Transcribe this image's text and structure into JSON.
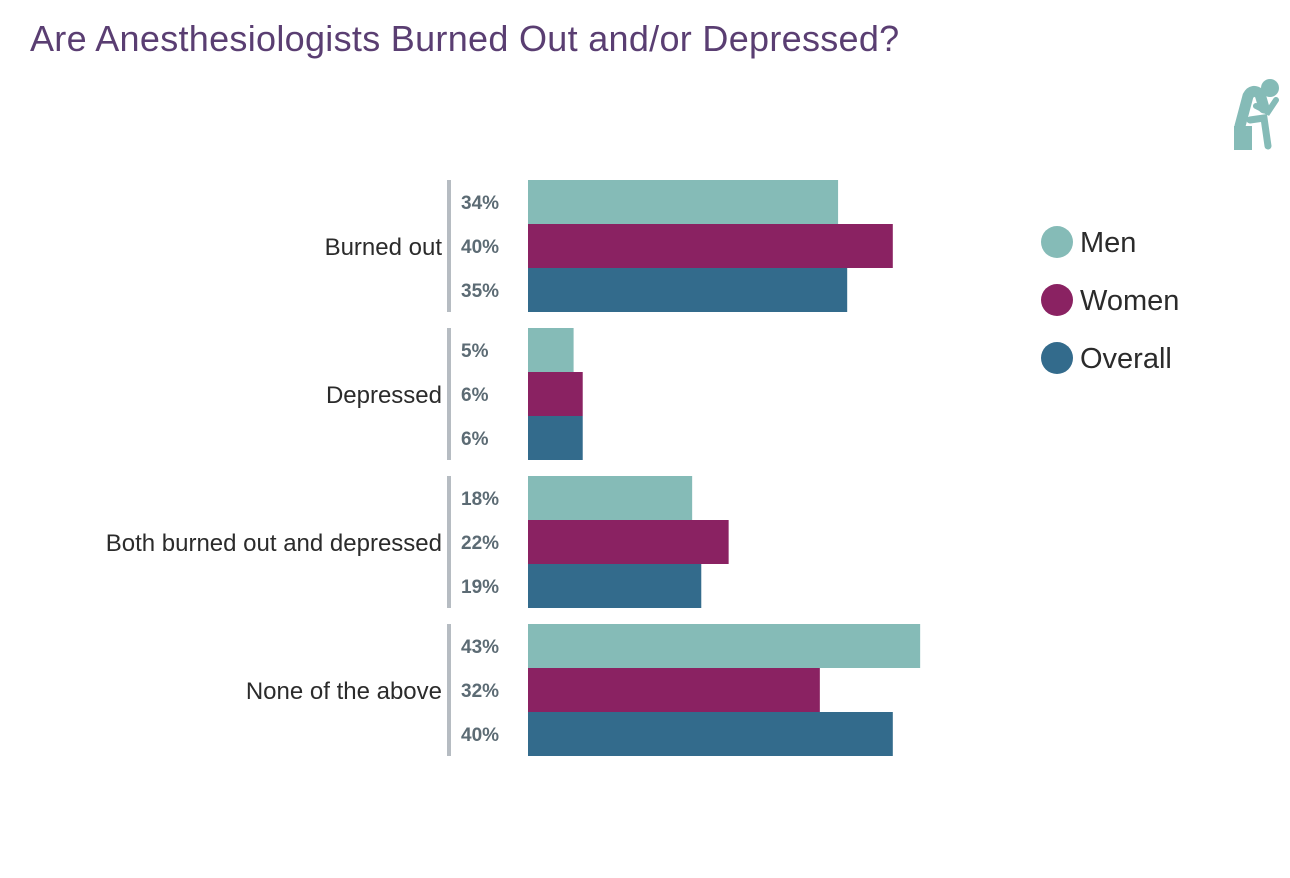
{
  "chart_data": {
    "type": "bar",
    "orientation": "horizontal",
    "title": "Are Anesthesiologists Burned Out and/or Depressed?",
    "categories": [
      "Burned out",
      "Depressed",
      "Both burned out and depressed",
      "None of the above"
    ],
    "series": [
      {
        "name": "Men",
        "color": "#85bbb7",
        "values": [
          34,
          5,
          18,
          43
        ]
      },
      {
        "name": "Women",
        "color": "#8a2262",
        "values": [
          40,
          6,
          22,
          32
        ]
      },
      {
        "name": "Overall",
        "color": "#336b8c",
        "values": [
          35,
          6,
          19,
          40
        ]
      }
    ],
    "value_suffix": "%",
    "xlim": [
      0,
      45
    ],
    "grid": false,
    "legend_position": "right",
    "icon": "thinking-person-icon",
    "icon_color": "#85bbb7"
  }
}
